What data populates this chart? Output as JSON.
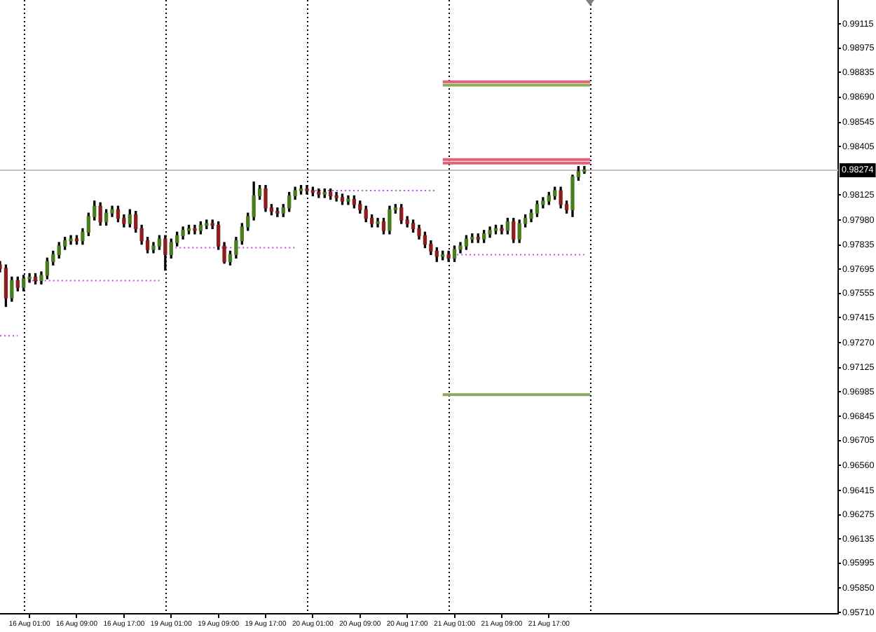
{
  "chart_data": {
    "type": "candlestick",
    "categories": [
      null,
      null,
      null,
      null,
      null,
      "16 Aug 01:00",
      null,
      null,
      null,
      null,
      null,
      null,
      null,
      "16 Aug 09:00",
      null,
      null,
      null,
      null,
      null,
      null,
      null,
      "16 Aug 17:00",
      null,
      null,
      null,
      null,
      null,
      null,
      null,
      "19 Aug 01:00",
      null,
      null,
      null,
      null,
      null,
      null,
      null,
      "19 Aug 09:00",
      null,
      null,
      null,
      null,
      null,
      null,
      null,
      "19 Aug 17:00",
      null,
      null,
      null,
      null,
      null,
      null,
      null,
      "20 Aug 01:00",
      null,
      null,
      null,
      null,
      null,
      null,
      null,
      "20 Aug 09:00",
      null,
      null,
      null,
      null,
      null,
      null,
      null,
      "20 Aug 17:00",
      null,
      null,
      null,
      null,
      null,
      null,
      null,
      "21 Aug 01:00",
      null,
      null,
      null,
      null,
      null,
      null,
      null,
      "21 Aug 09:00",
      null,
      null,
      null,
      null,
      null,
      null,
      null,
      "21 Aug 17:00",
      null,
      null,
      null,
      null,
      null,
      null,
      null,
      null,
      null,
      null,
      null,
      null,
      null,
      null,
      null,
      null,
      null,
      null,
      null,
      null,
      null,
      null,
      null,
      null,
      null,
      null,
      null,
      null,
      null,
      null,
      null,
      null,
      null,
      null,
      null,
      null,
      null,
      null,
      null,
      null,
      null,
      null,
      null,
      null,
      null,
      null,
      null,
      null,
      null
    ],
    "ohlc": [
      [
        0.9772,
        0.9774,
        0.9768,
        0.977
      ],
      [
        0.977,
        0.9772,
        0.9748,
        0.9753
      ],
      [
        0.9753,
        0.9765,
        0.9751,
        0.9763
      ],
      [
        0.9763,
        0.9765,
        0.9757,
        0.9759
      ],
      [
        0.9759,
        0.9766,
        0.9757,
        0.9764
      ],
      [
        0.9764,
        0.9767,
        0.9762,
        0.9765
      ],
      [
        0.9765,
        0.9767,
        0.9761,
        0.9763
      ],
      [
        0.9763,
        0.9768,
        0.9761,
        0.9766
      ],
      [
        0.9766,
        0.9776,
        0.9764,
        0.9774
      ],
      [
        0.9774,
        0.978,
        0.9772,
        0.9778
      ],
      [
        0.9778,
        0.9785,
        0.9776,
        0.9783
      ],
      [
        0.9783,
        0.9788,
        0.9781,
        0.9786
      ],
      [
        0.9786,
        0.9789,
        0.9784,
        0.9787
      ],
      [
        0.9787,
        0.9789,
        0.9784,
        0.9786
      ],
      [
        0.9786,
        0.9793,
        0.9784,
        0.9791
      ],
      [
        0.9791,
        0.9802,
        0.9789,
        0.98
      ],
      [
        0.98,
        0.9809,
        0.9798,
        0.9806
      ],
      [
        0.9806,
        0.9808,
        0.9795,
        0.9797
      ],
      [
        0.9797,
        0.9804,
        0.9795,
        0.9802
      ],
      [
        0.9802,
        0.9806,
        0.98,
        0.9804
      ],
      [
        0.9804,
        0.9806,
        0.9797,
        0.9799
      ],
      [
        0.9799,
        0.9801,
        0.9794,
        0.9796
      ],
      [
        0.9796,
        0.9804,
        0.9794,
        0.9801
      ],
      [
        0.9801,
        0.9803,
        0.9791,
        0.9793
      ],
      [
        0.9793,
        0.9795,
        0.9784,
        0.9786
      ],
      [
        0.9786,
        0.9788,
        0.9779,
        0.9781
      ],
      [
        0.9781,
        0.9785,
        0.9779,
        0.9783
      ],
      [
        0.9783,
        0.9789,
        0.9781,
        0.9787
      ],
      [
        0.9787,
        0.9789,
        0.9769,
        0.9778
      ],
      [
        0.9778,
        0.9787,
        0.9776,
        0.9785
      ],
      [
        0.9785,
        0.9791,
        0.9783,
        0.9789
      ],
      [
        0.9789,
        0.9794,
        0.9787,
        0.9792
      ],
      [
        0.9792,
        0.9795,
        0.979,
        0.9793
      ],
      [
        0.9793,
        0.9795,
        0.979,
        0.9792
      ],
      [
        0.9792,
        0.9797,
        0.979,
        0.9795
      ],
      [
        0.9795,
        0.9798,
        0.9793,
        0.9796
      ],
      [
        0.9796,
        0.9798,
        0.9793,
        0.9795
      ],
      [
        0.9795,
        0.9797,
        0.9781,
        0.9783
      ],
      [
        0.9783,
        0.9785,
        0.9773,
        0.9774
      ],
      [
        0.9774,
        0.978,
        0.9772,
        0.9778
      ],
      [
        0.9778,
        0.9788,
        0.9776,
        0.9786
      ],
      [
        0.9786,
        0.9796,
        0.9784,
        0.9794
      ],
      [
        0.9794,
        0.9802,
        0.9792,
        0.98
      ],
      [
        0.98,
        0.982,
        0.9798,
        0.9812
      ],
      [
        0.9812,
        0.9818,
        0.981,
        0.9816
      ],
      [
        0.9816,
        0.9818,
        0.9803,
        0.9805
      ],
      [
        0.9805,
        0.9807,
        0.9801,
        0.9803
      ],
      [
        0.9803,
        0.9805,
        0.98,
        0.9802
      ],
      [
        0.9802,
        0.9807,
        0.98,
        0.9805
      ],
      [
        0.9805,
        0.9814,
        0.9803,
        0.9812
      ],
      [
        0.9812,
        0.9817,
        0.981,
        0.9815
      ],
      [
        0.9815,
        0.9818,
        0.9813,
        0.9816
      ],
      [
        0.9816,
        0.9818,
        0.9813,
        0.9815
      ],
      [
        0.9815,
        0.9817,
        0.9812,
        0.9814
      ],
      [
        0.9814,
        0.9816,
        0.9811,
        0.9813
      ],
      [
        0.9813,
        0.9816,
        0.9811,
        0.9814
      ],
      [
        0.9814,
        0.9816,
        0.981,
        0.9812
      ],
      [
        0.9812,
        0.9814,
        0.9809,
        0.9811
      ],
      [
        0.9811,
        0.9813,
        0.9807,
        0.9809
      ],
      [
        0.9809,
        0.9812,
        0.9807,
        0.981
      ],
      [
        0.981,
        0.9812,
        0.9805,
        0.9807
      ],
      [
        0.9807,
        0.9809,
        0.9802,
        0.9804
      ],
      [
        0.9804,
        0.9806,
        0.9797,
        0.9799
      ],
      [
        0.9799,
        0.9801,
        0.9794,
        0.9796
      ],
      [
        0.9796,
        0.9799,
        0.9794,
        0.9797
      ],
      [
        0.9797,
        0.9799,
        0.979,
        0.9792
      ],
      [
        0.9792,
        0.9806,
        0.979,
        0.9804
      ],
      [
        0.9804,
        0.9807,
        0.9802,
        0.9805
      ],
      [
        0.9805,
        0.9807,
        0.9796,
        0.9798
      ],
      [
        0.9798,
        0.98,
        0.9794,
        0.9796
      ],
      [
        0.9796,
        0.9798,
        0.9791,
        0.9793
      ],
      [
        0.9793,
        0.9795,
        0.9787,
        0.9789
      ],
      [
        0.9789,
        0.9791,
        0.9782,
        0.9784
      ],
      [
        0.9784,
        0.9786,
        0.9778,
        0.978
      ],
      [
        0.978,
        0.9782,
        0.9774,
        0.9777
      ],
      [
        0.9777,
        0.978,
        0.9775,
        0.9778
      ],
      [
        0.9778,
        0.978,
        0.9774,
        0.9776
      ],
      [
        0.9776,
        0.9783,
        0.9774,
        0.9781
      ],
      [
        0.9781,
        0.9785,
        0.9779,
        0.9783
      ],
      [
        0.9783,
        0.9789,
        0.9781,
        0.9787
      ],
      [
        0.9787,
        0.979,
        0.9785,
        0.9788
      ],
      [
        0.9788,
        0.979,
        0.9785,
        0.9787
      ],
      [
        0.9787,
        0.9792,
        0.9785,
        0.979
      ],
      [
        0.979,
        0.9794,
        0.9788,
        0.9792
      ],
      [
        0.9792,
        0.9795,
        0.979,
        0.9793
      ],
      [
        0.9793,
        0.9795,
        0.979,
        0.9792
      ],
      [
        0.9792,
        0.9799,
        0.979,
        0.9797
      ],
      [
        0.9797,
        0.9799,
        0.9785,
        0.9787
      ],
      [
        0.9787,
        0.9798,
        0.9785,
        0.9796
      ],
      [
        0.9796,
        0.9801,
        0.9794,
        0.9799
      ],
      [
        0.9799,
        0.9804,
        0.9797,
        0.9802
      ],
      [
        0.9802,
        0.9809,
        0.98,
        0.9807
      ],
      [
        0.9807,
        0.9811,
        0.9805,
        0.9809
      ],
      [
        0.9809,
        0.9814,
        0.9807,
        0.9812
      ],
      [
        0.9812,
        0.9817,
        0.981,
        0.9815
      ],
      [
        0.9815,
        0.9817,
        0.9805,
        0.9807
      ],
      [
        0.9807,
        0.9809,
        0.9802,
        0.9804
      ],
      [
        0.9804,
        0.9824,
        0.98,
        0.9823
      ],
      [
        0.9823,
        0.9829,
        0.9821,
        0.9826
      ],
      [
        0.9826,
        0.9829,
        0.9825,
        0.9827
      ],
      null,
      null,
      null,
      null,
      null,
      null,
      null,
      null,
      null,
      null,
      null,
      null,
      null,
      null,
      null,
      null,
      null,
      null,
      null,
      null,
      null,
      null,
      null,
      null,
      null,
      null,
      null,
      null,
      null,
      null,
      null,
      null,
      null,
      null,
      null,
      null,
      null,
      null,
      null,
      null,
      null,
      null,
      null
    ],
    "colors": [
      "#8b1e1e",
      "#8b1e1e",
      "#4a7d1e",
      "#8b1e1e",
      "#4a7d1e",
      "#4a7d1e",
      "#8b1e1e",
      "#4a7d1e",
      "#4a7d1e",
      "#4a7d1e",
      "#4a7d1e",
      "#4a7d1e",
      "#4a7d1e",
      "#8b1e1e",
      "#4a7d1e",
      "#4a7d1e",
      "#4a7d1e",
      "#8b1e1e",
      "#4a7d1e",
      "#4a7d1e",
      "#8b1e1e",
      "#8b1e1e",
      "#4a7d1e",
      "#8b1e1e",
      "#8b1e1e",
      "#8b1e1e",
      "#4a7d1e",
      "#4a7d1e",
      "#8b1e1e",
      "#4a7d1e",
      "#4a7d1e",
      "#4a7d1e",
      "#4a7d1e",
      "#8b1e1e",
      "#4a7d1e",
      "#4a7d1e",
      "#8b1e1e",
      "#8b1e1e",
      "#8b1e1e",
      "#4a7d1e",
      "#4a7d1e",
      "#4a7d1e",
      "#4a7d1e",
      "#4a7d1e",
      "#4a7d1e",
      "#8b1e1e",
      "#8b1e1e",
      "#8b1e1e",
      "#4a7d1e",
      "#4a7d1e",
      "#4a7d1e",
      "#4a7d1e",
      "#8b1e1e",
      "#8b1e1e",
      "#8b1e1e",
      "#4a7d1e",
      "#8b1e1e",
      "#8b1e1e",
      "#8b1e1e",
      "#4a7d1e",
      "#8b1e1e",
      "#8b1e1e",
      "#8b1e1e",
      "#8b1e1e",
      "#4a7d1e",
      "#8b1e1e",
      "#4a7d1e",
      "#4a7d1e",
      "#8b1e1e",
      "#8b1e1e",
      "#8b1e1e",
      "#8b1e1e",
      "#8b1e1e",
      "#8b1e1e",
      "#8b1e1e",
      "#4a7d1e",
      "#8b1e1e",
      "#4a7d1e",
      "#4a7d1e",
      "#4a7d1e",
      "#4a7d1e",
      "#8b1e1e",
      "#4a7d1e",
      "#4a7d1e",
      "#4a7d1e",
      "#8b1e1e",
      "#4a7d1e",
      "#8b1e1e",
      "#4a7d1e",
      "#4a7d1e",
      "#4a7d1e",
      "#4a7d1e",
      "#4a7d1e",
      "#4a7d1e",
      "#4a7d1e",
      "#8b1e1e",
      "#8b1e1e",
      "#4a7d1e",
      "#4a7d1e",
      "#4a7d1e",
      null,
      null,
      null,
      null,
      null,
      null,
      null,
      null,
      null,
      null,
      null,
      null,
      null,
      null,
      null,
      null,
      null,
      null,
      null,
      null,
      null,
      null,
      null,
      null,
      null,
      null,
      null,
      null,
      null,
      null,
      null,
      null,
      null,
      null,
      null,
      null,
      null,
      null,
      null,
      null,
      null,
      null,
      null
    ],
    "series": [
      {
        "type": "line",
        "color": "#cc44ee",
        "line_style": "dotted",
        "values": [
          0.9731,
          0.9731,
          0.9731,
          0.9731,
          null,
          null,
          null,
          null,
          null,
          null,
          null,
          null,
          null,
          null,
          null,
          null,
          null,
          null,
          null,
          null,
          null,
          null,
          null,
          null,
          null,
          null,
          null,
          null,
          null,
          null,
          null,
          null,
          null,
          null,
          null,
          null,
          null,
          null,
          null,
          null,
          null,
          null,
          null,
          null,
          null,
          null,
          null,
          null,
          null,
          null,
          null,
          null,
          null,
          null,
          null,
          null,
          null,
          null,
          null,
          null,
          null,
          null,
          null,
          null,
          null,
          null,
          null,
          null,
          null,
          null,
          null,
          null,
          null,
          null,
          null,
          null,
          null,
          null,
          null,
          null,
          null,
          null,
          null,
          null,
          null,
          null,
          null,
          null,
          null,
          null,
          null,
          null,
          null,
          null,
          null,
          null,
          null,
          null,
          null,
          null,
          null,
          null,
          null,
          null,
          null,
          null,
          null,
          null,
          null,
          null,
          null,
          null,
          null,
          null,
          null,
          null,
          null,
          null,
          null,
          null,
          null,
          null,
          null,
          null,
          null,
          null,
          null,
          null,
          null,
          null,
          null,
          null,
          null,
          null,
          null,
          null,
          null,
          null,
          null,
          null,
          null,
          null,
          null
        ]
      },
      {
        "type": "line",
        "color": "#cc44ee",
        "line_style": "dotted",
        "values": [
          null,
          null,
          null,
          null,
          0.9763,
          0.9763,
          0.9763,
          0.9763,
          0.9763,
          0.9763,
          0.9763,
          0.9763,
          0.9763,
          0.9763,
          0.9763,
          0.9763,
          0.9763,
          0.9763,
          0.9763,
          0.9763,
          0.9763,
          0.9763,
          0.9763,
          0.9763,
          0.9763,
          0.9763,
          0.9763,
          0.9763,
          null,
          null,
          null,
          null,
          null,
          null,
          null,
          null,
          null,
          null,
          null,
          null,
          null,
          null,
          null,
          null,
          null,
          null,
          null,
          null,
          null,
          null,
          null,
          null,
          null,
          null,
          null,
          null,
          null,
          null,
          null,
          null,
          null,
          null,
          null,
          null,
          null,
          null,
          null,
          null,
          null,
          null,
          null,
          null,
          null,
          null,
          null,
          null,
          null,
          null,
          null,
          null,
          null,
          null,
          null,
          null,
          null,
          null,
          null,
          null,
          null,
          null,
          null,
          null,
          null,
          null,
          null,
          null,
          null,
          null,
          null,
          null,
          null,
          null,
          null,
          null,
          null,
          null,
          null,
          null,
          null,
          null,
          null,
          null,
          null,
          null,
          null,
          null,
          null,
          null,
          null,
          null,
          null,
          null,
          null,
          null,
          null,
          null,
          null,
          null,
          null,
          null,
          null,
          null,
          null,
          null,
          null,
          null,
          null,
          null,
          null,
          null,
          null,
          null,
          null
        ]
      },
      {
        "type": "line",
        "color": "#cc44ee",
        "line_style": "dotted",
        "values": [
          null,
          null,
          null,
          null,
          null,
          null,
          null,
          null,
          null,
          null,
          null,
          null,
          null,
          null,
          null,
          null,
          null,
          null,
          null,
          null,
          null,
          null,
          null,
          null,
          null,
          null,
          null,
          null,
          null,
          0.9782,
          0.9782,
          0.9782,
          0.9782,
          0.9782,
          0.9782,
          0.9782,
          0.9782,
          0.9782,
          0.9782,
          0.9782,
          0.9782,
          0.9782,
          0.9782,
          0.9782,
          0.9782,
          0.9782,
          0.9782,
          0.9782,
          0.9782,
          0.9782,
          0.9782,
          null,
          null,
          null,
          null,
          null,
          null,
          null,
          null,
          null,
          null,
          null,
          null,
          null,
          null,
          null,
          null,
          null,
          null,
          null,
          null,
          null,
          null,
          null,
          null,
          null,
          null,
          null,
          null,
          null,
          null,
          null,
          null,
          null,
          null,
          null,
          null,
          null,
          null,
          null,
          null,
          null,
          null,
          null,
          null,
          null,
          null,
          null,
          null,
          null,
          null,
          null,
          null,
          null,
          null,
          null,
          null,
          null,
          null,
          null,
          null,
          null,
          null,
          null,
          null,
          null,
          null,
          null,
          null,
          null,
          null,
          null,
          null,
          null,
          null,
          null,
          null,
          null,
          null,
          null,
          null,
          null,
          null,
          null,
          null,
          null,
          null,
          null,
          null,
          null,
          null,
          null,
          null
        ]
      },
      {
        "type": "line",
        "color": "#cc44ee",
        "line_style": "dotted",
        "values": [
          null,
          null,
          null,
          null,
          null,
          null,
          null,
          null,
          null,
          null,
          null,
          null,
          null,
          null,
          null,
          null,
          null,
          null,
          null,
          null,
          null,
          null,
          null,
          null,
          null,
          null,
          null,
          null,
          null,
          null,
          null,
          null,
          null,
          null,
          null,
          null,
          null,
          null,
          null,
          null,
          null,
          null,
          null,
          null,
          null,
          null,
          null,
          null,
          null,
          null,
          null,
          null,
          0.9815,
          0.9815,
          0.9815,
          0.9815,
          0.9815,
          0.9815,
          0.9815,
          0.9815,
          0.9815,
          0.9815,
          0.9815,
          0.9815,
          0.9815,
          0.9815,
          0.9815,
          0.9815,
          0.9815,
          0.9815,
          0.9815,
          0.9815,
          0.9815,
          0.9815,
          0.9815,
          null,
          null,
          null,
          null,
          null,
          null,
          null,
          null,
          null,
          null,
          null,
          null,
          null,
          null,
          null,
          null,
          null,
          null,
          null,
          null,
          null,
          null,
          null,
          null,
          null,
          null,
          null,
          null,
          null,
          null,
          null,
          null,
          null,
          null,
          null,
          null,
          null,
          null,
          null,
          null,
          null,
          null,
          null,
          null,
          null,
          null,
          null,
          null,
          null,
          null,
          null,
          null,
          null,
          null,
          null,
          null,
          null,
          null,
          null,
          null,
          null,
          null,
          null,
          null,
          null,
          null,
          null,
          null
        ]
      },
      {
        "type": "line",
        "color": "#cc44ee",
        "line_style": "dotted",
        "values": [
          null,
          null,
          null,
          null,
          null,
          null,
          null,
          null,
          null,
          null,
          null,
          null,
          null,
          null,
          null,
          null,
          null,
          null,
          null,
          null,
          null,
          null,
          null,
          null,
          null,
          null,
          null,
          null,
          null,
          null,
          null,
          null,
          null,
          null,
          null,
          null,
          null,
          null,
          null,
          null,
          null,
          null,
          null,
          null,
          null,
          null,
          null,
          null,
          null,
          null,
          null,
          null,
          null,
          null,
          null,
          null,
          null,
          null,
          null,
          null,
          null,
          null,
          null,
          null,
          null,
          null,
          null,
          null,
          null,
          null,
          null,
          null,
          null,
          null,
          null,
          null,
          0.9778,
          0.9778,
          0.9778,
          0.9778,
          0.9778,
          0.9778,
          0.9778,
          0.9778,
          0.9778,
          0.9778,
          0.9778,
          0.9778,
          0.9778,
          0.9778,
          0.9778,
          0.9778,
          0.9778,
          0.9778,
          0.9778,
          0.9778,
          0.9778,
          0.9778,
          0.9778,
          0.9778,
          null,
          null,
          null,
          null,
          null,
          null,
          null,
          null,
          null,
          null,
          null,
          null,
          null,
          null,
          null,
          null,
          null,
          null,
          null,
          null,
          null,
          null,
          null,
          null,
          null,
          null,
          null,
          null,
          null,
          null,
          null,
          null,
          null,
          null,
          null,
          null,
          null,
          null,
          null,
          null,
          null,
          null,
          null
        ]
      },
      {
        "type": "line",
        "color": "#e0607a",
        "line_style": "solid",
        "values": [
          null,
          null,
          null,
          null,
          null,
          null,
          null,
          null,
          null,
          null,
          null,
          null,
          null,
          null,
          null,
          null,
          null,
          null,
          null,
          null,
          null,
          null,
          null,
          null,
          null,
          null,
          null,
          null,
          null,
          null,
          null,
          null,
          null,
          null,
          null,
          null,
          null,
          null,
          null,
          null,
          null,
          null,
          null,
          null,
          null,
          null,
          null,
          null,
          null,
          null,
          null,
          null,
          null,
          null,
          null,
          null,
          null,
          null,
          null,
          null,
          null,
          null,
          null,
          null,
          null,
          null,
          null,
          null,
          null,
          null,
          null,
          null,
          null,
          null,
          null,
          0.9878,
          0.9878,
          0.9878,
          0.9878,
          0.9878,
          0.9878,
          0.9878,
          0.9878,
          0.9878,
          0.9878,
          0.9878,
          0.9878,
          0.9878,
          0.9878,
          0.9878,
          0.9878,
          0.9878,
          0.9878,
          0.9878,
          0.9878,
          0.9878,
          0.9878,
          0.9878,
          0.9878,
          0.9878,
          0.9878,
          null,
          null,
          null,
          null,
          null,
          null,
          null,
          null,
          null,
          null,
          null,
          null,
          null,
          null,
          null,
          null,
          null,
          null,
          null,
          null,
          null,
          null,
          null,
          null,
          null,
          null,
          null,
          null,
          null,
          null,
          null,
          null,
          null,
          null,
          null,
          null,
          null,
          null,
          null,
          null,
          null,
          null
        ]
      },
      {
        "type": "line",
        "color": "#8aaa5a",
        "line_style": "solid",
        "values": [
          null,
          null,
          null,
          null,
          null,
          null,
          null,
          null,
          null,
          null,
          null,
          null,
          null,
          null,
          null,
          null,
          null,
          null,
          null,
          null,
          null,
          null,
          null,
          null,
          null,
          null,
          null,
          null,
          null,
          null,
          null,
          null,
          null,
          null,
          null,
          null,
          null,
          null,
          null,
          null,
          null,
          null,
          null,
          null,
          null,
          null,
          null,
          null,
          null,
          null,
          null,
          null,
          null,
          null,
          null,
          null,
          null,
          null,
          null,
          null,
          null,
          null,
          null,
          null,
          null,
          null,
          null,
          null,
          null,
          null,
          null,
          null,
          null,
          null,
          null,
          0.9876,
          0.9876,
          0.9876,
          0.9876,
          0.9876,
          0.9876,
          0.9876,
          0.9876,
          0.9876,
          0.9876,
          0.9876,
          0.9876,
          0.9876,
          0.9876,
          0.9876,
          0.9876,
          0.9876,
          0.9876,
          0.9876,
          0.9876,
          0.9876,
          0.9876,
          0.9876,
          0.9876,
          0.9876,
          0.9876,
          null,
          null,
          null,
          null,
          null,
          null,
          null,
          null,
          null,
          null,
          null,
          null,
          null,
          null,
          null,
          null,
          null,
          null,
          null,
          null,
          null,
          null,
          null,
          null,
          null,
          null,
          null,
          null,
          null,
          null,
          null,
          null,
          null,
          null,
          null,
          null,
          null,
          null,
          null,
          null,
          null,
          null
        ]
      },
      {
        "type": "line",
        "color": "#e0607a",
        "line_style": "solid",
        "values": [
          null,
          null,
          null,
          null,
          null,
          null,
          null,
          null,
          null,
          null,
          null,
          null,
          null,
          null,
          null,
          null,
          null,
          null,
          null,
          null,
          null,
          null,
          null,
          null,
          null,
          null,
          null,
          null,
          null,
          null,
          null,
          null,
          null,
          null,
          null,
          null,
          null,
          null,
          null,
          null,
          null,
          null,
          null,
          null,
          null,
          null,
          null,
          null,
          null,
          null,
          null,
          null,
          null,
          null,
          null,
          null,
          null,
          null,
          null,
          null,
          null,
          null,
          null,
          null,
          null,
          null,
          null,
          null,
          null,
          null,
          null,
          null,
          null,
          null,
          null,
          0.9833,
          0.9833,
          0.9833,
          0.9833,
          0.9833,
          0.9833,
          0.9833,
          0.9833,
          0.9833,
          0.9833,
          0.9833,
          0.9833,
          0.9833,
          0.9833,
          0.9833,
          0.9833,
          0.9833,
          0.9833,
          0.9833,
          0.9833,
          0.9833,
          0.9833,
          0.9833,
          0.9833,
          0.9833,
          0.9833,
          null,
          null,
          null,
          null,
          null,
          null,
          null,
          null,
          null,
          null,
          null,
          null,
          null,
          null,
          null,
          null,
          null,
          null,
          null,
          null,
          null,
          null,
          null,
          null,
          null,
          null,
          null,
          null,
          null,
          null,
          null,
          null,
          null,
          null,
          null,
          null,
          null,
          null,
          null,
          null,
          null,
          null
        ]
      },
      {
        "type": "line",
        "color": "#e0607a",
        "line_style": "solid",
        "values": [
          null,
          null,
          null,
          null,
          null,
          null,
          null,
          null,
          null,
          null,
          null,
          null,
          null,
          null,
          null,
          null,
          null,
          null,
          null,
          null,
          null,
          null,
          null,
          null,
          null,
          null,
          null,
          null,
          null,
          null,
          null,
          null,
          null,
          null,
          null,
          null,
          null,
          null,
          null,
          null,
          null,
          null,
          null,
          null,
          null,
          null,
          null,
          null,
          null,
          null,
          null,
          null,
          null,
          null,
          null,
          null,
          null,
          null,
          null,
          null,
          null,
          null,
          null,
          null,
          null,
          null,
          null,
          null,
          null,
          null,
          null,
          null,
          null,
          null,
          null,
          0.9831,
          0.9831,
          0.9831,
          0.9831,
          0.9831,
          0.9831,
          0.9831,
          0.9831,
          0.9831,
          0.9831,
          0.9831,
          0.9831,
          0.9831,
          0.9831,
          0.9831,
          0.9831,
          0.9831,
          0.9831,
          0.9831,
          0.9831,
          0.9831,
          0.9831,
          0.9831,
          0.9831,
          0.9831,
          0.9831,
          null,
          null,
          null,
          null,
          null,
          null,
          null,
          null,
          null,
          null,
          null,
          null,
          null,
          null,
          null,
          null,
          null,
          null,
          null,
          null,
          null,
          null,
          null,
          null,
          null,
          null,
          null,
          null,
          null,
          null,
          null,
          null,
          null,
          null,
          null,
          null,
          null,
          null,
          null,
          null,
          null,
          null
        ]
      },
      {
        "type": "line",
        "color": "#8aaa5a",
        "line_style": "solid",
        "values": [
          null,
          null,
          null,
          null,
          null,
          null,
          null,
          null,
          null,
          null,
          null,
          null,
          null,
          null,
          null,
          null,
          null,
          null,
          null,
          null,
          null,
          null,
          null,
          null,
          null,
          null,
          null,
          null,
          null,
          null,
          null,
          null,
          null,
          null,
          null,
          null,
          null,
          null,
          null,
          null,
          null,
          null,
          null,
          null,
          null,
          null,
          null,
          null,
          null,
          null,
          null,
          null,
          null,
          null,
          null,
          null,
          null,
          null,
          null,
          null,
          null,
          null,
          null,
          null,
          null,
          null,
          null,
          null,
          null,
          null,
          null,
          null,
          null,
          null,
          null,
          0.9697,
          0.9697,
          0.9697,
          0.9697,
          0.9697,
          0.9697,
          0.9697,
          0.9697,
          0.9697,
          0.9697,
          0.9697,
          0.9697,
          0.9697,
          0.9697,
          0.9697,
          0.9697,
          0.9697,
          0.9697,
          0.9697,
          0.9697,
          0.9697,
          0.9697,
          0.9697,
          0.9697,
          0.9697,
          0.9697,
          null,
          null,
          null,
          null,
          null,
          null,
          null,
          null,
          null,
          null,
          null,
          null,
          null,
          null,
          null,
          null,
          null,
          null,
          null,
          null,
          null,
          null,
          null,
          null,
          null,
          null,
          null,
          null,
          null,
          null,
          null,
          null,
          null,
          null,
          null,
          null,
          null,
          null,
          null,
          null,
          null,
          null
        ]
      }
    ],
    "ylim": [
      0.95702,
      0.99253
    ],
    "yticks": [
      {
        "value": 0.9571,
        "label": "0.95710"
      },
      {
        "value": 0.9585,
        "label": "0.95850"
      },
      0.95995,
      0.96135,
      0.96275,
      0.96415,
      {
        "value": 0.9656,
        "label": "0.96560"
      },
      0.96705,
      0.96845,
      0.96985,
      0.97125,
      {
        "value": 0.9727,
        "label": "0.97270"
      },
      0.97415,
      0.97555,
      0.97695,
      0.97835,
      {
        "value": 0.9798,
        "label": "0.97980"
      },
      0.98125,
      0.98405,
      0.98545,
      {
        "value": 0.9869,
        "label": "0.98690"
      },
      0.98835,
      0.98975,
      0.99115
    ],
    "ref_lines": [
      {
        "axis": "y",
        "value": 0.98274,
        "label": "0.98274",
        "color": "#c0c0c0",
        "line_style": "solid"
      }
    ]
  }
}
